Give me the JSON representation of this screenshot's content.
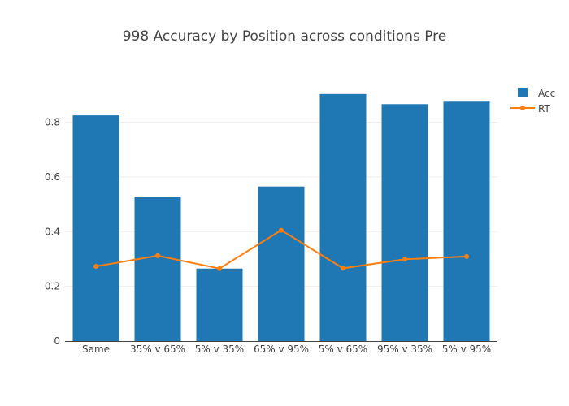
{
  "chart_data": {
    "type": "bar",
    "title": "998 Accuracy by Position across conditions Pre",
    "xlabel": "",
    "ylabel": "",
    "categories": [
      "Same",
      "35% v 65%",
      "5% v 35%",
      "65% v 95%",
      "5% v 65%",
      "95% v 35%",
      "5% v 95%"
    ],
    "series": [
      {
        "name": "Acc",
        "type": "bar",
        "color": "#1f77b4",
        "values": [
          0.825,
          0.528,
          0.265,
          0.565,
          0.903,
          0.866,
          0.878
        ]
      },
      {
        "name": "RT",
        "type": "line",
        "color": "#ff7f0e",
        "values": [
          0.273,
          0.312,
          0.265,
          0.405,
          0.266,
          0.299,
          0.309
        ]
      }
    ],
    "y_ticks": [
      "0",
      "0.2",
      "0.4",
      "0.6",
      "0.8"
    ],
    "ylim": [
      0,
      0.95
    ],
    "grid": true,
    "legend": "top-right"
  }
}
